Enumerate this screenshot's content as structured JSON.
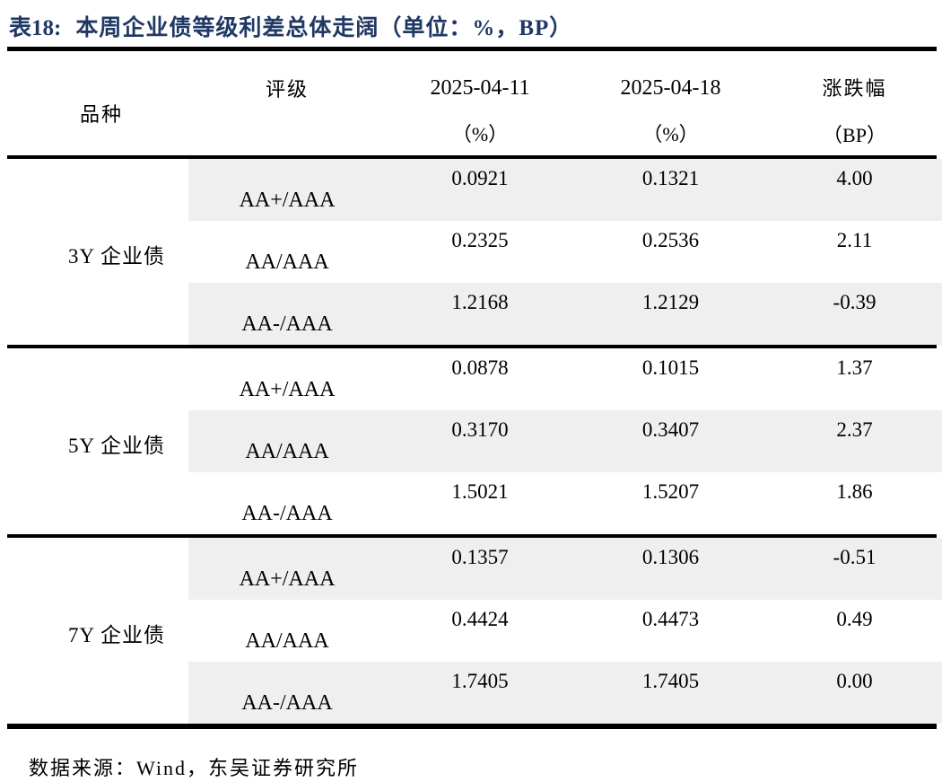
{
  "title": {
    "label": "表18:",
    "text": "本周企业债等级利差总体走阔（单位：%，BP）"
  },
  "table": {
    "headers": {
      "variety": "品种",
      "rating": "评级",
      "date1": "2025-04-11",
      "date1_unit": "（%）",
      "date2": "2025-04-18",
      "date2_unit": "（%）",
      "change": "涨跌幅",
      "change_unit": "（BP）"
    },
    "groups": [
      {
        "variety": "3Y 企业债",
        "rows": [
          {
            "rating": "AA+/AAA",
            "v1": "0.0921",
            "v2": "0.1321",
            "chg": "4.00"
          },
          {
            "rating": "AA/AAA",
            "v1": "0.2325",
            "v2": "0.2536",
            "chg": "2.11"
          },
          {
            "rating": "AA-/AAA",
            "v1": "1.2168",
            "v2": "1.2129",
            "chg": "-0.39"
          }
        ]
      },
      {
        "variety": "5Y 企业债",
        "rows": [
          {
            "rating": "AA+/AAA",
            "v1": "0.0878",
            "v2": "0.1015",
            "chg": "1.37"
          },
          {
            "rating": "AA/AAA",
            "v1": "0.3170",
            "v2": "0.3407",
            "chg": "2.37"
          },
          {
            "rating": "AA-/AAA",
            "v1": "1.5021",
            "v2": "1.5207",
            "chg": "1.86"
          }
        ]
      },
      {
        "variety": "7Y 企业债",
        "rows": [
          {
            "rating": "AA+/AAA",
            "v1": "0.1357",
            "v2": "0.1306",
            "chg": "-0.51"
          },
          {
            "rating": "AA/AAA",
            "v1": "0.4424",
            "v2": "0.4473",
            "chg": "0.49"
          },
          {
            "rating": "AA-/AAA",
            "v1": "1.7405",
            "v2": "1.7405",
            "chg": "0.00"
          }
        ]
      }
    ]
  },
  "source": "数据来源：Wind，东吴证券研究所",
  "colors": {
    "title": "#1F3864",
    "row_shade": "#EFEFEF",
    "rule": "#000000"
  }
}
